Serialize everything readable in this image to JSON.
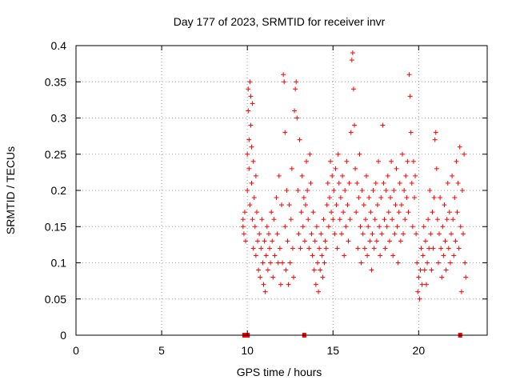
{
  "chart_data": {
    "type": "scatter",
    "title": "Day 177 of 2023, SRMTID for receiver invr",
    "xlabel": "GPS time / hours",
    "ylabel": "SRMTID / TECUs",
    "xlim": [
      0,
      24
    ],
    "ylim": [
      0,
      0.4
    ],
    "xticks": [
      0,
      5,
      10,
      15,
      20
    ],
    "xtick_labels": [
      "0",
      "5",
      "10",
      "15",
      "20"
    ],
    "yticks": [
      0,
      0.05,
      0.1,
      0.15,
      0.2,
      0.25,
      0.3,
      0.35,
      0.4
    ],
    "ytick_labels": [
      "0",
      "0.05",
      "0.1",
      "0.15",
      "0.2",
      "0.25",
      "0.3",
      "0.35",
      "0.4"
    ],
    "grid": true,
    "marker": "plus",
    "color": "#ff0000",
    "series": [
      {
        "points": [
          [
            9.75,
            0.16
          ],
          [
            9.75,
            0.15
          ],
          [
            9.8,
            0.14
          ],
          [
            9.85,
            0.17
          ],
          [
            9.9,
            0.13
          ],
          [
            10.0,
            0.25
          ],
          [
            10.0,
            0.2
          ],
          [
            10.05,
            0.34
          ],
          [
            10.05,
            0.31
          ],
          [
            10.1,
            0.27
          ],
          [
            10.1,
            0.23
          ],
          [
            10.15,
            0.35
          ],
          [
            10.15,
            0.18
          ],
          [
            10.2,
            0.33
          ],
          [
            10.2,
            0.29
          ],
          [
            10.25,
            0.26
          ],
          [
            10.25,
            0.21
          ],
          [
            10.3,
            0.32
          ],
          [
            10.3,
            0.16
          ],
          [
            10.35,
            0.24
          ],
          [
            10.35,
            0.12
          ],
          [
            10.4,
            0.19
          ],
          [
            10.45,
            0.15
          ],
          [
            10.5,
            0.22
          ],
          [
            10.5,
            0.11
          ],
          [
            10.55,
            0.17
          ],
          [
            10.6,
            0.13
          ],
          [
            10.65,
            0.09
          ],
          [
            10.7,
            0.14
          ],
          [
            10.75,
            0.08
          ],
          [
            10.8,
            0.12
          ],
          [
            10.85,
            0.16
          ],
          [
            10.9,
            0.1
          ],
          [
            10.95,
            0.07
          ],
          [
            11.0,
            0.13
          ],
          [
            11.05,
            0.06
          ],
          [
            11.1,
            0.11
          ],
          [
            11.15,
            0.15
          ],
          [
            11.2,
            0.09
          ],
          [
            11.25,
            0.14
          ],
          [
            11.3,
            0.12
          ],
          [
            11.35,
            0.1
          ],
          [
            11.4,
            0.17
          ],
          [
            11.45,
            0.13
          ],
          [
            11.5,
            0.08
          ],
          [
            11.55,
            0.16
          ],
          [
            11.6,
            0.11
          ],
          [
            11.7,
            0.19
          ],
          [
            11.75,
            0.14
          ],
          [
            11.8,
            0.1
          ],
          [
            11.85,
            0.22
          ],
          [
            11.9,
            0.12
          ],
          [
            11.95,
            0.07
          ],
          [
            12.0,
            0.18
          ],
          [
            12.05,
            0.1
          ],
          [
            12.1,
            0.36
          ],
          [
            12.15,
            0.35
          ],
          [
            12.2,
            0.28
          ],
          [
            12.2,
            0.15
          ],
          [
            12.25,
            0.09
          ],
          [
            12.3,
            0.2
          ],
          [
            12.35,
            0.13
          ],
          [
            12.4,
            0.07
          ],
          [
            12.45,
            0.18
          ],
          [
            12.5,
            0.1
          ],
          [
            12.55,
            0.16
          ],
          [
            12.6,
            0.23
          ],
          [
            12.65,
            0.12
          ],
          [
            12.7,
            0.08
          ],
          [
            12.75,
            0.31
          ],
          [
            12.8,
            0.34
          ],
          [
            12.85,
            0.35
          ],
          [
            12.9,
            0.3
          ],
          [
            12.95,
            0.2
          ],
          [
            13.0,
            0.14
          ],
          [
            13.05,
            0.27
          ],
          [
            13.1,
            0.12
          ],
          [
            13.15,
            0.17
          ],
          [
            13.2,
            0.22
          ],
          [
            13.25,
            0.15
          ],
          [
            13.3,
            0.19
          ],
          [
            13.35,
            0.13
          ],
          [
            13.4,
            0.18
          ],
          [
            13.45,
            0.24
          ],
          [
            13.5,
            0.2
          ],
          [
            13.55,
            0.16
          ],
          [
            13.6,
            0.12
          ],
          [
            13.65,
            0.25
          ],
          [
            13.7,
            0.21
          ],
          [
            13.75,
            0.14
          ],
          [
            13.8,
            0.11
          ],
          [
            13.85,
            0.17
          ],
          [
            13.9,
            0.09
          ],
          [
            13.95,
            0.13
          ],
          [
            14.0,
            0.07
          ],
          [
            14.05,
            0.15
          ],
          [
            14.1,
            0.1
          ],
          [
            14.15,
            0.06
          ],
          [
            14.2,
            0.12
          ],
          [
            14.25,
            0.09
          ],
          [
            14.3,
            0.14
          ],
          [
            14.35,
            0.11
          ],
          [
            14.4,
            0.08
          ],
          [
            14.45,
            0.16
          ],
          [
            14.5,
            0.1
          ],
          [
            14.55,
            0.13
          ],
          [
            14.6,
            0.12
          ],
          [
            14.65,
            0.18
          ],
          [
            14.7,
            0.21
          ],
          [
            14.75,
            0.15
          ],
          [
            14.8,
            0.19
          ],
          [
            14.85,
            0.24
          ],
          [
            14.9,
            0.17
          ],
          [
            14.95,
            0.22
          ],
          [
            15.0,
            0.16
          ],
          [
            15.05,
            0.2
          ],
          [
            15.1,
            0.14
          ],
          [
            15.15,
            0.23
          ],
          [
            15.2,
            0.18
          ],
          [
            15.25,
            0.12
          ],
          [
            15.3,
            0.25
          ],
          [
            15.35,
            0.21
          ],
          [
            15.4,
            0.16
          ],
          [
            15.45,
            0.19
          ],
          [
            15.5,
            0.14
          ],
          [
            15.55,
            0.22
          ],
          [
            15.6,
            0.17
          ],
          [
            15.65,
            0.11
          ],
          [
            15.7,
            0.2
          ],
          [
            15.75,
            0.15
          ],
          [
            15.8,
            0.24
          ],
          [
            15.85,
            0.18
          ],
          [
            15.9,
            0.13
          ],
          [
            15.95,
            0.21
          ],
          [
            16.0,
            0.16
          ],
          [
            16.05,
            0.28
          ],
          [
            16.1,
            0.38
          ],
          [
            16.15,
            0.39
          ],
          [
            16.2,
            0.34
          ],
          [
            16.25,
            0.29
          ],
          [
            16.3,
            0.23
          ],
          [
            16.35,
            0.17
          ],
          [
            16.4,
            0.21
          ],
          [
            16.45,
            0.12
          ],
          [
            16.5,
            0.19
          ],
          [
            16.55,
            0.25
          ],
          [
            16.6,
            0.15
          ],
          [
            16.65,
            0.1
          ],
          [
            16.7,
            0.2
          ],
          [
            16.75,
            0.14
          ],
          [
            16.8,
            0.18
          ],
          [
            16.85,
            0.12
          ],
          [
            16.9,
            0.16
          ],
          [
            16.95,
            0.22
          ],
          [
            17.0,
            0.11
          ],
          [
            17.05,
            0.15
          ],
          [
            17.1,
            0.19
          ],
          [
            17.15,
            0.13
          ],
          [
            17.2,
            0.17
          ],
          [
            17.25,
            0.09
          ],
          [
            17.3,
            0.14
          ],
          [
            17.35,
            0.2
          ],
          [
            17.4,
            0.12
          ],
          [
            17.45,
            0.16
          ],
          [
            17.5,
            0.21
          ],
          [
            17.55,
            0.13
          ],
          [
            17.6,
            0.18
          ],
          [
            17.65,
            0.24
          ],
          [
            17.7,
            0.15
          ],
          [
            17.75,
            0.11
          ],
          [
            17.8,
            0.19
          ],
          [
            17.85,
            0.14
          ],
          [
            17.9,
            0.29
          ],
          [
            17.95,
            0.21
          ],
          [
            18.0,
            0.16
          ],
          [
            18.05,
            0.12
          ],
          [
            18.1,
            0.2
          ],
          [
            18.15,
            0.15
          ],
          [
            18.2,
            0.22
          ],
          [
            18.25,
            0.17
          ],
          [
            18.3,
            0.13
          ],
          [
            18.35,
            0.19
          ],
          [
            18.4,
            0.24
          ],
          [
            18.45,
            0.16
          ],
          [
            18.5,
            0.11
          ],
          [
            18.55,
            0.2
          ],
          [
            18.6,
            0.14
          ],
          [
            18.65,
            0.18
          ],
          [
            18.7,
            0.23
          ],
          [
            18.75,
            0.15
          ],
          [
            18.8,
            0.1
          ],
          [
            18.85,
            0.17
          ],
          [
            18.9,
            0.21
          ],
          [
            18.95,
            0.13
          ],
          [
            19.0,
            0.18
          ],
          [
            19.05,
            0.25
          ],
          [
            19.1,
            0.14
          ],
          [
            19.15,
            0.2
          ],
          [
            19.2,
            0.16
          ],
          [
            19.25,
            0.22
          ],
          [
            19.3,
            0.19
          ],
          [
            19.35,
            0.24
          ],
          [
            19.4,
            0.17
          ],
          [
            19.45,
            0.36
          ],
          [
            19.5,
            0.33
          ],
          [
            19.55,
            0.28
          ],
          [
            19.6,
            0.21
          ],
          [
            19.65,
            0.15
          ],
          [
            19.7,
            0.24
          ],
          [
            19.75,
            0.19
          ],
          [
            19.8,
            0.22
          ],
          [
            19.85,
            0.14
          ],
          [
            19.9,
            0.1
          ],
          [
            19.95,
            0.06
          ],
          [
            20.0,
            0.08
          ],
          [
            20.05,
            0.05
          ],
          [
            20.1,
            0.09
          ],
          [
            20.15,
            0.12
          ],
          [
            20.2,
            0.07
          ],
          [
            20.25,
            0.11
          ],
          [
            20.3,
            0.15
          ],
          [
            20.35,
            0.09
          ],
          [
            20.4,
            0.13
          ],
          [
            20.45,
            0.07
          ],
          [
            20.5,
            0.1
          ],
          [
            20.55,
            0.16
          ],
          [
            20.6,
            0.12
          ],
          [
            20.65,
            0.2
          ],
          [
            20.7,
            0.14
          ],
          [
            20.75,
            0.09
          ],
          [
            20.8,
            0.17
          ],
          [
            20.85,
            0.12
          ],
          [
            20.9,
            0.19
          ],
          [
            20.95,
            0.27
          ],
          [
            21.0,
            0.28
          ],
          [
            21.05,
            0.23
          ],
          [
            21.1,
            0.16
          ],
          [
            21.15,
            0.1
          ],
          [
            21.2,
            0.14
          ],
          [
            21.25,
            0.19
          ],
          [
            21.3,
            0.12
          ],
          [
            21.35,
            0.08
          ],
          [
            21.4,
            0.15
          ],
          [
            21.45,
            0.11
          ],
          [
            21.5,
            0.18
          ],
          [
            21.55,
            0.13
          ],
          [
            21.6,
            0.09
          ],
          [
            21.65,
            0.16
          ],
          [
            21.7,
            0.21
          ],
          [
            21.75,
            0.12
          ],
          [
            21.8,
            0.17
          ],
          [
            21.85,
            0.1
          ],
          [
            21.9,
            0.14
          ],
          [
            21.95,
            0.22
          ],
          [
            22.0,
            0.16
          ],
          [
            22.05,
            0.11
          ],
          [
            22.1,
            0.19
          ],
          [
            22.15,
            0.13
          ],
          [
            22.2,
            0.24
          ],
          [
            22.25,
            0.17
          ],
          [
            22.3,
            0.21
          ],
          [
            22.35,
            0.12
          ],
          [
            22.4,
            0.26
          ],
          [
            22.45,
            0.15
          ],
          [
            22.5,
            0.06
          ],
          [
            22.55,
            0.2
          ],
          [
            22.6,
            0.14
          ],
          [
            22.65,
            0.25
          ],
          [
            22.7,
            0.1
          ],
          [
            22.75,
            0.08
          ]
        ]
      }
    ],
    "baseline_markers_x": [
      9.8,
      10.0,
      13.3,
      22.4
    ]
  }
}
